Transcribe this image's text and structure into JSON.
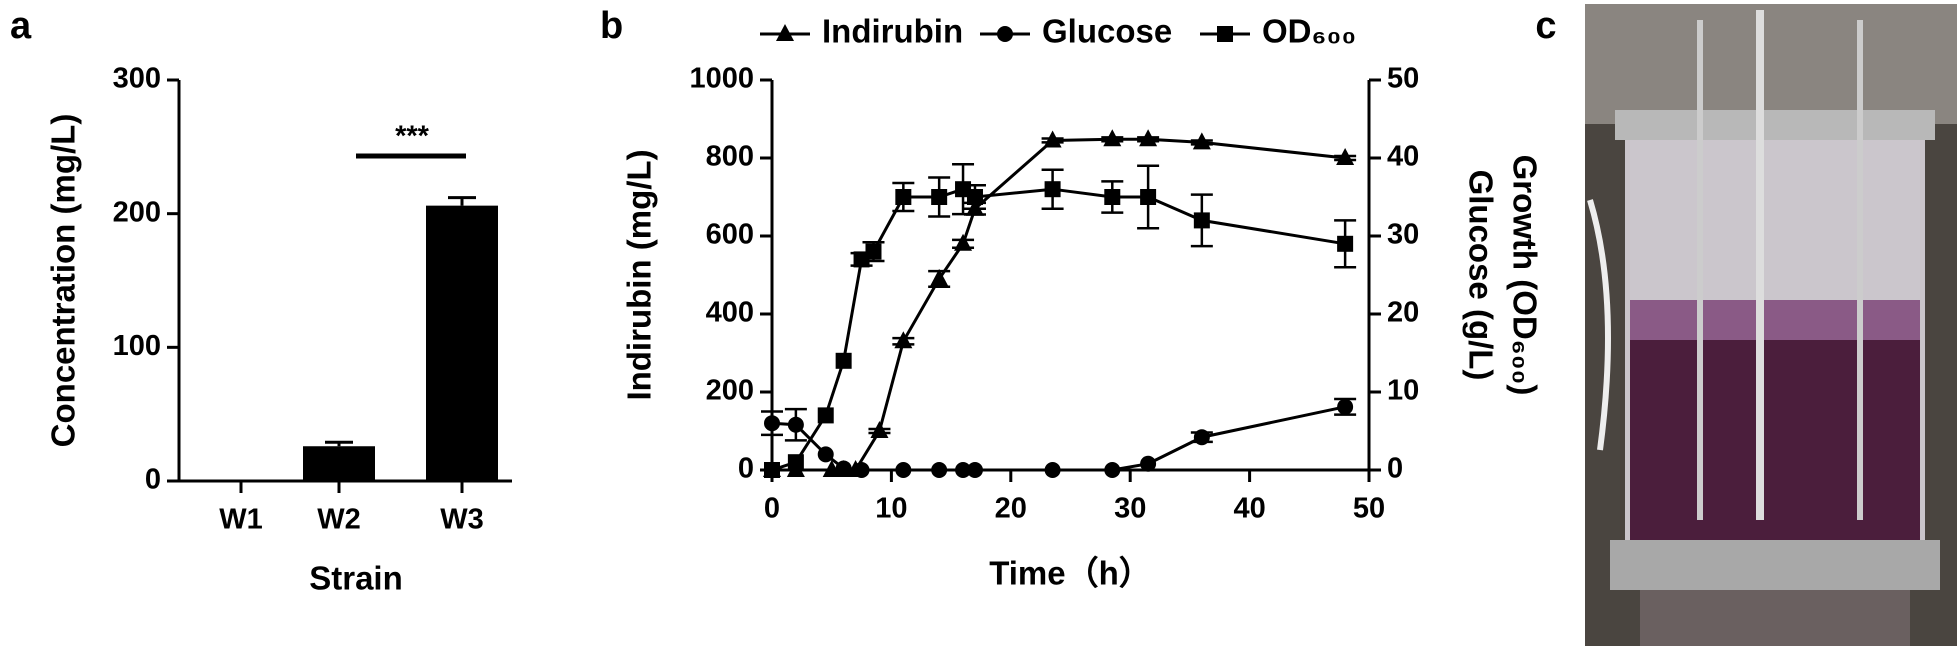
{
  "chart_data": [
    {
      "type": "bar",
      "panel": "a",
      "ylabel": "Concentration (mg/L)",
      "xlabel": "Strain",
      "categories": [
        "W1",
        "W2",
        "W3"
      ],
      "values": [
        0,
        26,
        206
      ],
      "errors": [
        0,
        3,
        6
      ],
      "color": "#000000",
      "ylim": [
        0,
        300
      ],
      "yticks": [
        0,
        100,
        200,
        300
      ],
      "annotation": "***"
    },
    {
      "type": "line",
      "panel": "b",
      "xlabel": "Time（h）",
      "ylabel": "Indirubin (mg/L)",
      "y2label": [
        "Growth (OD₆₀₀)",
        "Glucose (g/L)"
      ],
      "legend": "top",
      "xlim": [
        0,
        50
      ],
      "xticks": [
        0,
        10,
        20,
        30,
        40,
        50
      ],
      "ylim": [
        0,
        1000
      ],
      "yticks": [
        0,
        200,
        400,
        600,
        800,
        1000
      ],
      "y2lim": [
        0,
        50
      ],
      "y2ticks": [
        0,
        10,
        20,
        30,
        40,
        50
      ],
      "series": [
        {
          "name": "Indirubin",
          "color": "#000000",
          "marker": "triangle",
          "x": [
            0,
            2,
            5,
            6,
            7,
            9,
            11,
            14,
            16,
            17,
            23.5,
            28.5,
            31.5,
            36,
            48
          ],
          "values": [
            0,
            0,
            0,
            0,
            0,
            100,
            330,
            490,
            580,
            670,
            845,
            848,
            848,
            840,
            800
          ],
          "errors": [
            0,
            0,
            0,
            0,
            0,
            5,
            8,
            20,
            10,
            15,
            5,
            5,
            5,
            5,
            5
          ]
        },
        {
          "name": "Glucose",
          "color": "#000000",
          "marker": "circle",
          "axis": "y2",
          "x": [
            0,
            2,
            4.5,
            6,
            7.5,
            11,
            14,
            16,
            17,
            23.5,
            28.5,
            31.5,
            36,
            48
          ],
          "values": [
            6,
            5.8,
            2,
            0.2,
            0,
            0,
            0,
            0,
            0,
            0,
            0,
            0.8,
            4.2,
            8.1
          ],
          "errors": [
            1.5,
            2,
            0,
            0,
            0,
            0,
            0,
            0,
            0,
            0,
            0,
            0,
            0.6,
            1
          ]
        },
        {
          "name": "OD₆₀₀",
          "color": "#000000",
          "marker": "square",
          "axis": "y2",
          "x": [
            0,
            2,
            4.5,
            6,
            7.5,
            8.5,
            11,
            14,
            16,
            17,
            23.5,
            28.5,
            31.5,
            36,
            48
          ],
          "values": [
            0,
            1,
            7,
            14,
            27,
            28,
            35,
            35,
            36,
            35,
            36,
            35,
            35,
            32,
            29
          ],
          "errors": [
            0,
            0,
            0,
            0,
            0.8,
            1.2,
            1.8,
            2.5,
            3.2,
            1.5,
            2.5,
            2,
            4,
            3.3,
            3
          ]
        }
      ]
    }
  ],
  "photo": {
    "panel": "c"
  }
}
